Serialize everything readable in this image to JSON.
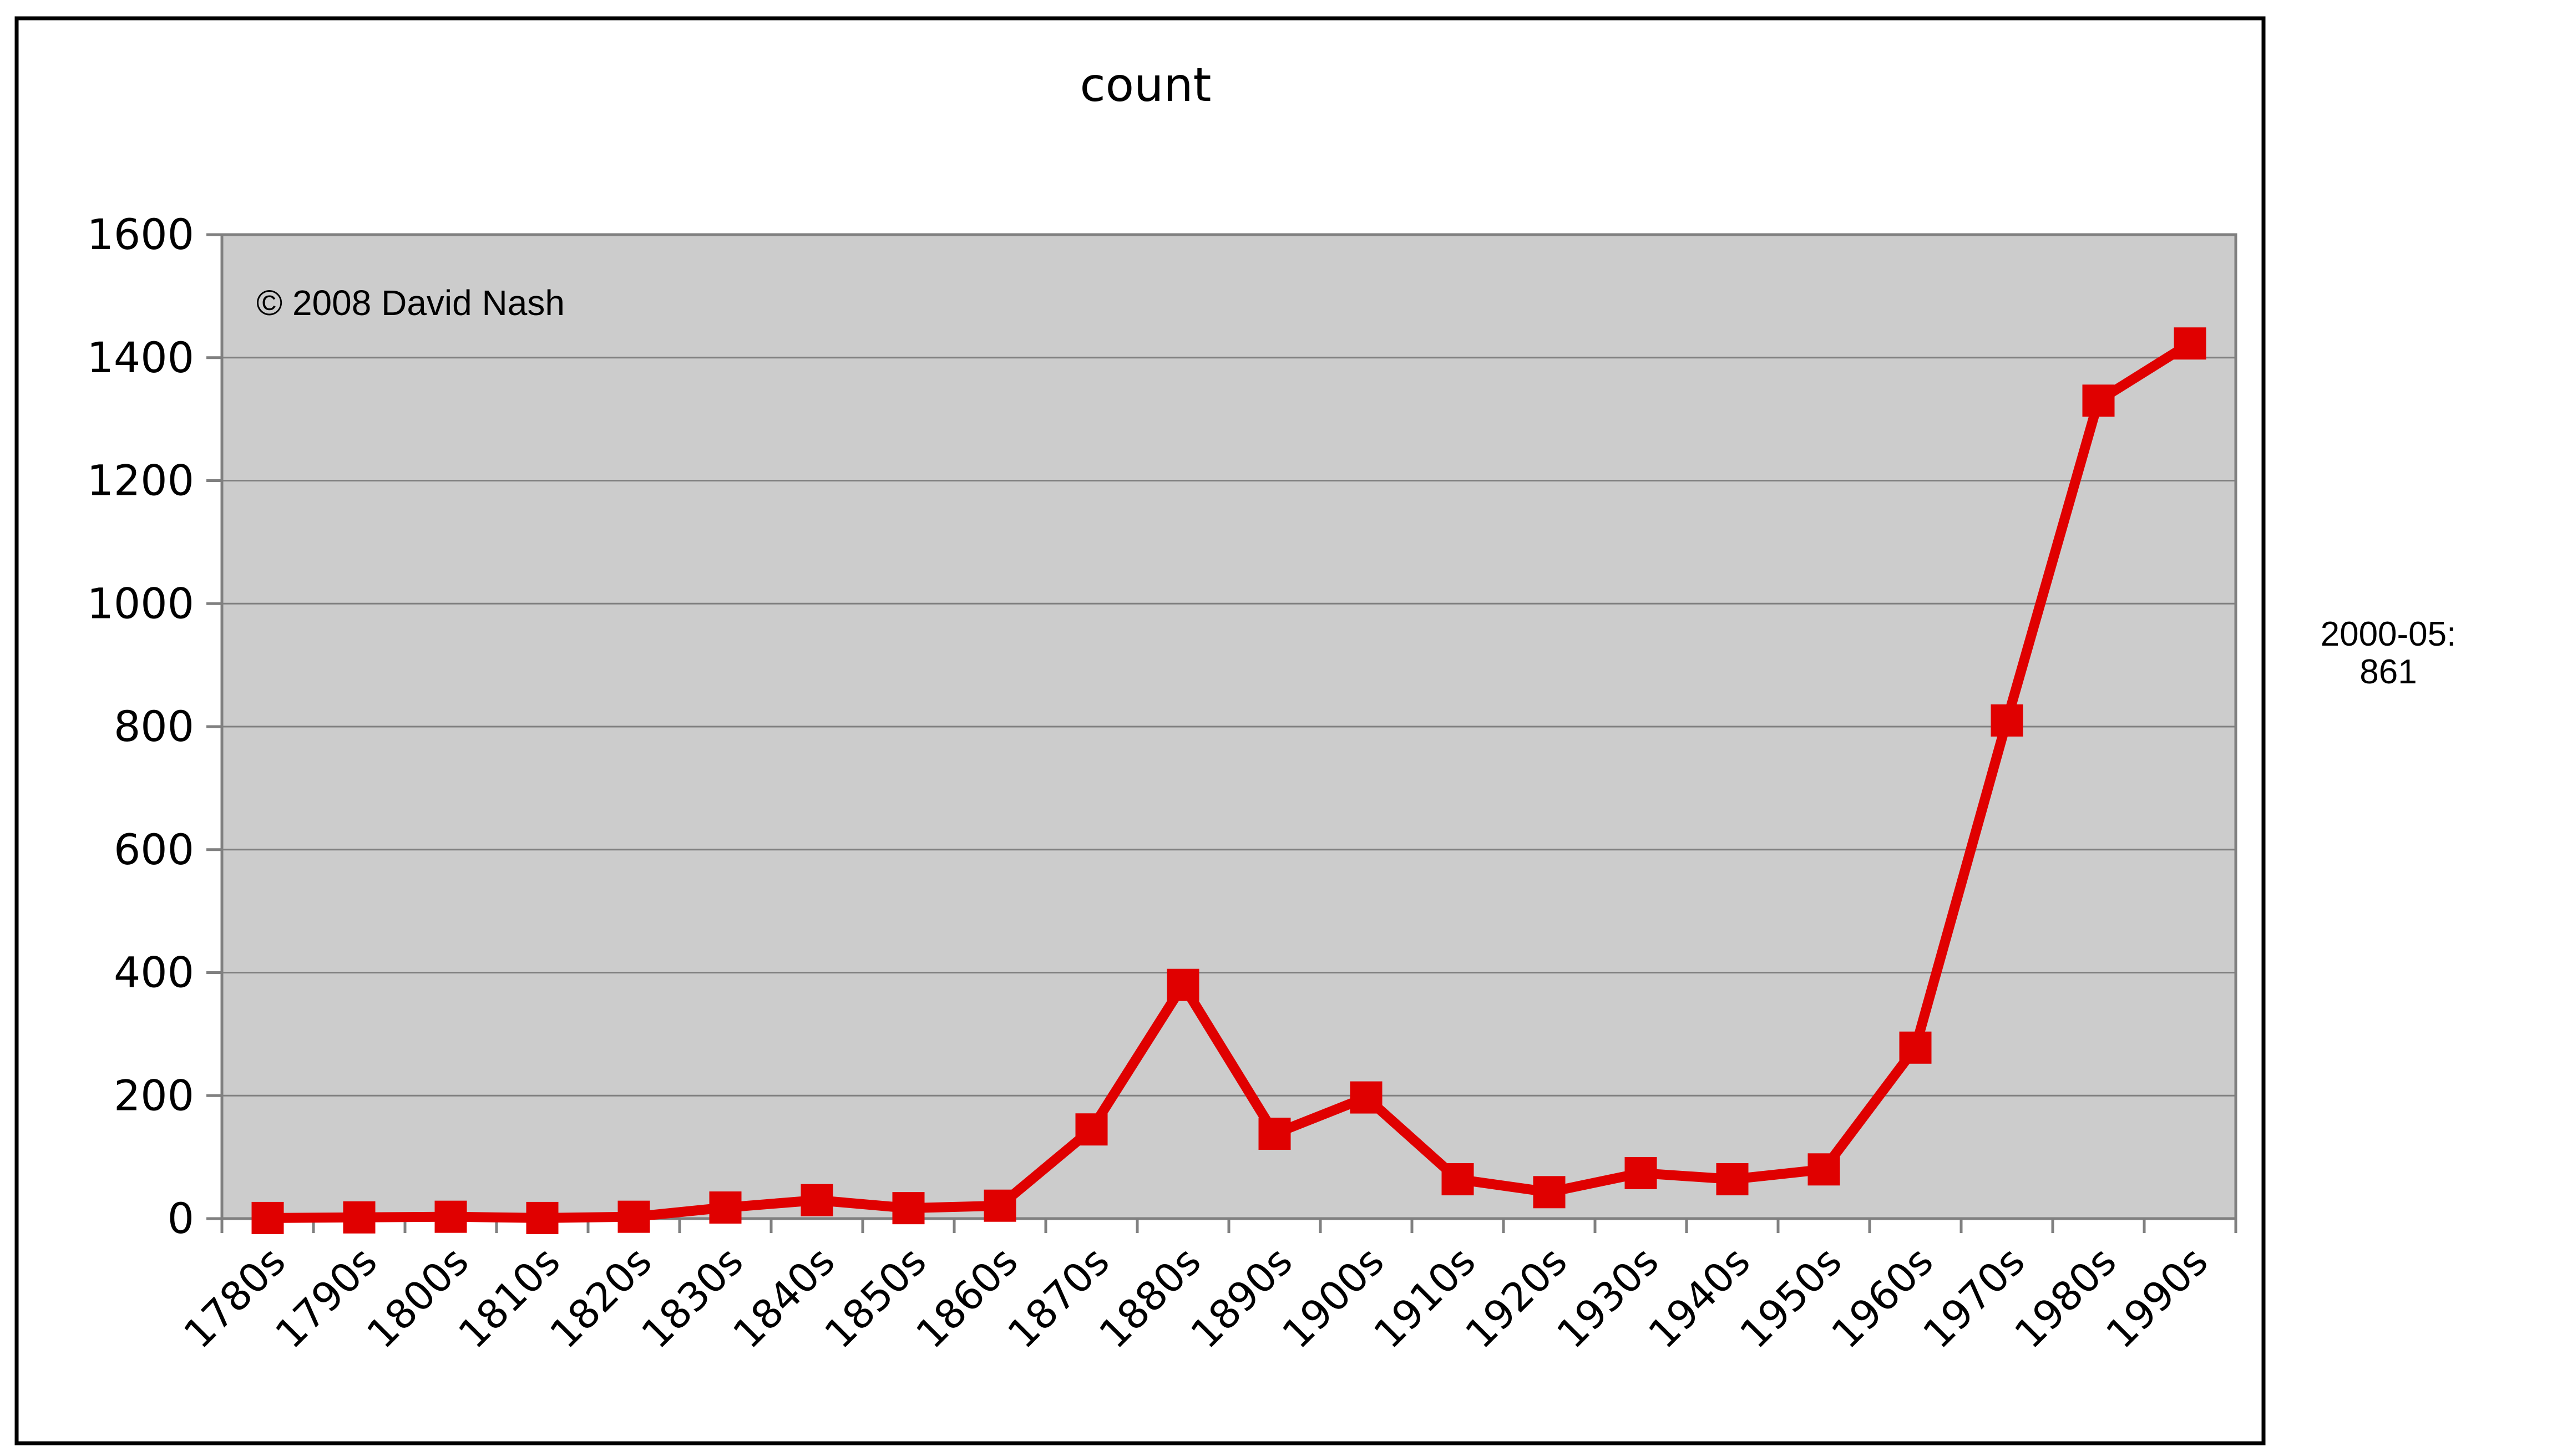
{
  "chart_data": {
    "type": "line",
    "title": "count",
    "xlabel": "",
    "ylabel": "",
    "categories": [
      "1780s",
      "1790s",
      "1800s",
      "1810s",
      "1820s",
      "1830s",
      "1840s",
      "1850s",
      "1860s",
      "1870s",
      "1880s",
      "1890s",
      "1900s",
      "1910s",
      "1920s",
      "1930s",
      "1940s",
      "1950s",
      "1960s",
      "1970s",
      "1980s",
      "1990s"
    ],
    "values": [
      1,
      2,
      3,
      1,
      3,
      18,
      30,
      17,
      21,
      145,
      380,
      138,
      197,
      64,
      43,
      74,
      64,
      80,
      278,
      810,
      1330,
      1423
    ],
    "ylim": [
      0,
      1600
    ],
    "yticks": [
      0,
      200,
      400,
      600,
      800,
      1000,
      1200,
      1400,
      1600
    ],
    "grid": true,
    "legend": "none",
    "annotation": "© 2008 David Nash",
    "side_note_line1": "2000-05:",
    "side_note_line2": "861",
    "colors": {
      "series": "#e00000",
      "plot_background": "#cccccc",
      "gridline": "#808080"
    }
  }
}
